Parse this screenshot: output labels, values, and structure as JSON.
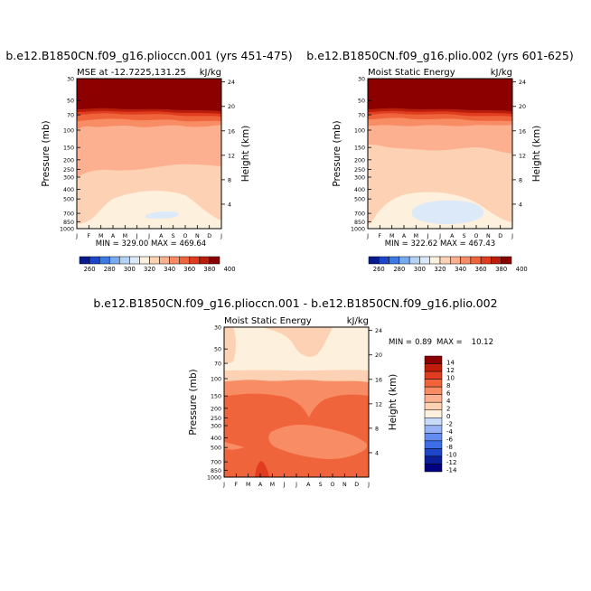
{
  "months": [
    "J",
    "F",
    "M",
    "A",
    "M",
    "J",
    "J",
    "A",
    "S",
    "O",
    "N",
    "D",
    "J"
  ],
  "pressure_ticks": [
    "30",
    "50",
    "70",
    "100",
    "150",
    "200",
    "250",
    "300",
    "400",
    "500",
    "700",
    "850",
    "1000"
  ],
  "colors": {
    "mse": [
      "#0a1a8c",
      "#1e46c8",
      "#3c78e6",
      "#78aaf0",
      "#b4d2f5",
      "#dce9f8",
      "#fdf0dc",
      "#fdd2b4",
      "#fdb090",
      "#f88c64",
      "#f0643c",
      "#e03c20",
      "#b81e0a",
      "#8c0000"
    ],
    "diff": [
      "#000080",
      "#0a1e9c",
      "#1e46c8",
      "#3c6ee6",
      "#648cf0",
      "#96b4f5",
      "#c8dcfa",
      "#fdf0dc",
      "#fdd2b4",
      "#fcb090",
      "#f88c64",
      "#f0643c",
      "#e03c20",
      "#c01e0a",
      "#8c0000"
    ]
  },
  "chart_data": [
    {
      "type": "heatmap",
      "title": "b.e12.B1850CN.f09_g16.plioccn.001 (yrs 451-475)",
      "subtitle_left": "MSE at -12.7225,131.25",
      "subtitle_right": "kJ/kg",
      "ylabel": "Pressure (mb)",
      "ylabel_right": "Height (km)",
      "x": [
        "J",
        "F",
        "M",
        "A",
        "M",
        "J",
        "J",
        "A",
        "S",
        "O",
        "N",
        "D",
        "J"
      ],
      "y_pressure": [
        30,
        50,
        70,
        100,
        150,
        200,
        250,
        300,
        400,
        500,
        700,
        850,
        1000
      ],
      "height_ticks_km": [
        4,
        8,
        12,
        16,
        20,
        24
      ],
      "min": 329.0,
      "max": 469.64,
      "min_max_text": "MIN = 329.00 MAX = 469.64",
      "colorbar_labels": [
        "260",
        "280",
        "300",
        "320",
        "340",
        "360",
        "380",
        "400"
      ],
      "contour_levels": [
        260,
        270,
        280,
        290,
        300,
        310,
        320,
        330,
        340,
        350,
        360,
        370,
        380,
        390,
        400
      ],
      "value_bands_by_pressure": [
        {
          "p_min": 30,
          "p_max": 60,
          "value_range": [
            400,
            470
          ]
        },
        {
          "p_min": 60,
          "p_max": 75,
          "value_range": [
            380,
            400
          ]
        },
        {
          "p_min": 75,
          "p_max": 100,
          "value_range": [
            360,
            380
          ]
        },
        {
          "p_min": 100,
          "p_max": 220,
          "value_range": [
            350,
            360
          ]
        },
        {
          "p_min": 220,
          "p_max": 500,
          "value_range": [
            340,
            350
          ]
        },
        {
          "p_min": 500,
          "p_max": 850,
          "value_range": [
            330,
            340
          ]
        },
        {
          "p_min": 650,
          "p_max": 720,
          "value_range": [
            329,
            330
          ]
        }
      ]
    },
    {
      "type": "heatmap",
      "title": "b.e12.B1850CN.f09_g16.plio.002 (yrs 601-625)",
      "subtitle_left": "Moist Static Energy",
      "subtitle_right": "kJ/kg",
      "ylabel": "Pressure (mb)",
      "ylabel_right": "Height (km)",
      "x": [
        "J",
        "F",
        "M",
        "A",
        "M",
        "J",
        "J",
        "A",
        "S",
        "O",
        "N",
        "D",
        "J"
      ],
      "y_pressure": [
        30,
        50,
        70,
        100,
        150,
        200,
        250,
        300,
        400,
        500,
        700,
        850,
        1000
      ],
      "height_ticks_km": [
        4,
        8,
        12,
        16,
        20,
        24
      ],
      "min": 322.62,
      "max": 467.43,
      "min_max_text": "MIN = 322.62 MAX = 467.43",
      "colorbar_labels": [
        "260",
        "280",
        "300",
        "320",
        "340",
        "360",
        "380",
        "400"
      ],
      "contour_levels": [
        260,
        270,
        280,
        290,
        300,
        310,
        320,
        330,
        340,
        350,
        360,
        370,
        380,
        390,
        400
      ],
      "value_bands_by_pressure": [
        {
          "p_min": 30,
          "p_max": 60,
          "value_range": [
            400,
            467
          ]
        },
        {
          "p_min": 60,
          "p_max": 75,
          "value_range": [
            380,
            400
          ]
        },
        {
          "p_min": 75,
          "p_max": 100,
          "value_range": [
            360,
            380
          ]
        },
        {
          "p_min": 100,
          "p_max": 200,
          "value_range": [
            350,
            360
          ]
        },
        {
          "p_min": 200,
          "p_max": 500,
          "value_range": [
            340,
            350
          ]
        },
        {
          "p_min": 500,
          "p_max": 850,
          "value_range": [
            330,
            340
          ]
        },
        {
          "p_min": 550,
          "p_max": 800,
          "value_range": [
            322,
            330
          ]
        }
      ]
    },
    {
      "type": "heatmap",
      "title": "b.e12.B1850CN.f09_g16.plioccn.001 - b.e12.B1850CN.f09_g16.plio.002",
      "subtitle_left": "Moist Static Energy",
      "subtitle_right": "kJ/kg",
      "ylabel": "Pressure (mb)",
      "ylabel_right": "Height (km)",
      "x": [
        "J",
        "F",
        "M",
        "A",
        "M",
        "J",
        "J",
        "A",
        "S",
        "O",
        "N",
        "D",
        "J"
      ],
      "y_pressure": [
        30,
        50,
        70,
        100,
        150,
        200,
        250,
        300,
        400,
        500,
        700,
        850,
        1000
      ],
      "height_ticks_km": [
        4,
        8,
        12,
        16,
        20,
        24
      ],
      "min": 0.89,
      "max": 10.12,
      "min_label": "MIN =",
      "min_value": "0.89",
      "max_label": "MAX =",
      "max_value": "10.12",
      "colorbar_labels": [
        "14",
        "12",
        "10",
        "8",
        "6",
        "4",
        "2",
        "0",
        "-2",
        "-4",
        "-6",
        "-8",
        "-10",
        "-12",
        "-14"
      ],
      "value_bands_by_pressure": [
        {
          "p_min": 30,
          "p_max": 90,
          "value_range": [
            0,
            2
          ]
        },
        {
          "p_min": 90,
          "p_max": 150,
          "value_range": [
            2,
            4
          ]
        },
        {
          "p_min": 150,
          "p_max": 1000,
          "value_range": [
            6,
            8
          ]
        },
        {
          "p_min": 200,
          "p_max": 500,
          "value_range": [
            4,
            6
          ]
        },
        {
          "p_min": 650,
          "p_max": 800,
          "value_range": [
            8,
            10
          ]
        }
      ]
    }
  ]
}
